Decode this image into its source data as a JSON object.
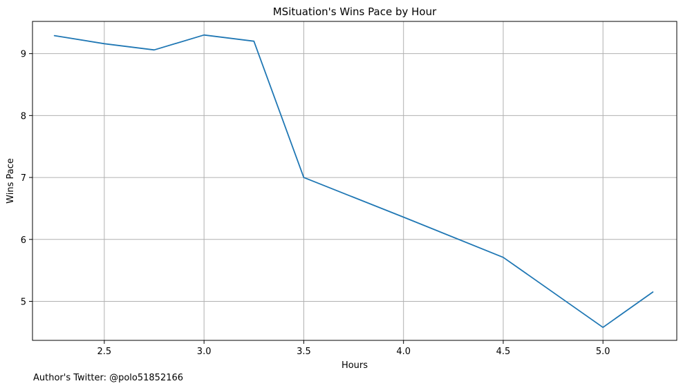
{
  "chart_data": {
    "type": "line",
    "title": "MSituation's Wins Pace by Hour",
    "xlabel": "Hours",
    "ylabel": "Wins Pace",
    "xlim": [
      2.14,
      5.37
    ],
    "ylim": [
      4.37,
      9.52
    ],
    "xticks": [
      2.5,
      3.0,
      3.5,
      4.0,
      4.5,
      5.0
    ],
    "xtick_labels": [
      "2.5",
      "3.0",
      "3.5",
      "4.0",
      "4.5",
      "5.0"
    ],
    "yticks": [
      5,
      6,
      7,
      8,
      9
    ],
    "ytick_labels": [
      "5",
      "6",
      "7",
      "8",
      "9"
    ],
    "grid": true,
    "series": [
      {
        "color": "#1f77b4",
        "x": [
          2.25,
          2.5,
          2.75,
          3.0,
          3.25,
          3.5,
          4.0,
          4.5,
          5.0,
          5.25
        ],
        "y": [
          9.29,
          9.16,
          9.06,
          9.3,
          9.2,
          7.0,
          6.36,
          5.71,
          4.58,
          5.15
        ]
      }
    ]
  },
  "footnote": "Author's Twitter: @polo51852166"
}
